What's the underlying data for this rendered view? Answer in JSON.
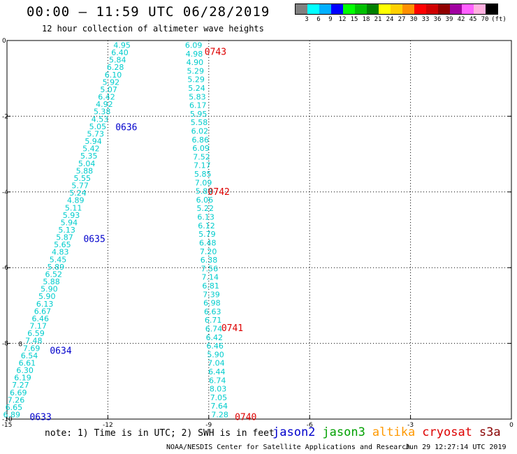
{
  "header": {
    "title": "00:00 — 11:59 UTC 06/28/2019",
    "subtitle": "12 hour collection of altimeter wave heights"
  },
  "color_scale": {
    "unit": "(ft)",
    "ticks": [
      "3",
      "6",
      "9",
      "12",
      "15",
      "18",
      "21",
      "24",
      "27",
      "30",
      "33",
      "36",
      "39",
      "42",
      "45",
      "70"
    ],
    "colors": [
      "#808080",
      "#00ffff",
      "#00b0ff",
      "#0000ff",
      "#00ff00",
      "#00c000",
      "#008000",
      "#ffff00",
      "#ffd000",
      "#ff9000",
      "#ff0000",
      "#d00000",
      "#900000",
      "#a000a0",
      "#ff60ff",
      "#ffb0e0",
      "#000000"
    ]
  },
  "footer": {
    "note": "note: 1) Time is in UTC; 2) SWH is in feet",
    "credit": "NOAA/NESDIS Center for Satellite Applications and Research",
    "timestamp": "Jun 29 12:27:14 UTC 2019"
  },
  "satellites": [
    {
      "name": "jason2",
      "color": "#0000cc"
    },
    {
      "name": "jason3",
      "color": "#00a000"
    },
    {
      "name": "altika",
      "color": "#ff9900"
    },
    {
      "name": "cryosat",
      "color": "#dd0000"
    },
    {
      "name": "s3a",
      "color": "#880000"
    }
  ],
  "chart_data": {
    "type": "scatter",
    "title": "00:00 — 11:59 UTC 06/28/2019",
    "xlim": [
      -15,
      0
    ],
    "ylim": [
      -10,
      0
    ],
    "x_ticks": [
      "-15",
      "-12",
      "-9",
      "-6",
      "-3",
      "0"
    ],
    "y_ticks": [
      "0",
      "-2",
      "-4",
      "-6",
      "-8",
      "-10"
    ],
    "grid": true,
    "series": [
      {
        "name": "jason2",
        "color": "#00cccc",
        "label_color": "#0000cc",
        "start": [
          -14.86,
          -9.88
        ],
        "end": [
          -11.58,
          -0.12
        ],
        "values": [
          "6.89",
          "6.65",
          "7.26",
          "6.69",
          "7.27",
          "6.19",
          "6.30",
          "6.61",
          "6.54",
          "7.69",
          "7.48",
          "6.59",
          "7.17",
          "6.46",
          "6.67",
          "6.13",
          "5.90",
          "5.90",
          "5.88",
          "6.52",
          "5.89",
          "5.45",
          "4.83",
          "5.65",
          "5.87",
          "5.13",
          "5.94",
          "5.93",
          "5.11",
          "4.89",
          "5.24",
          "5.77",
          "5.55",
          "5.88",
          "5.04",
          "5.35",
          "5.42",
          "5.94",
          "5.73",
          "5.05",
          "4.53",
          "5.38",
          "4.92",
          "6.42",
          "5.07",
          "5.92",
          "6.10",
          "6.28",
          "5.84",
          "6.40",
          "4.95"
        ],
        "time_labels": [
          {
            "text": "0633",
            "x": -14.0,
            "y": -9.95
          },
          {
            "text": "0634",
            "x": -13.4,
            "y": -8.2
          },
          {
            "text": "0635",
            "x": -12.4,
            "y": -5.25
          },
          {
            "text": "0636",
            "x": -11.45,
            "y": -2.3
          }
        ]
      },
      {
        "name": "s3a",
        "color": "#00cccc",
        "label_color": "#dd0000",
        "start": [
          -8.67,
          -9.88
        ],
        "end": [
          -9.45,
          -0.12
        ],
        "values": [
          "7.28",
          "7.64",
          "7.05",
          "8.03",
          "6.74",
          "6.44",
          "7.04",
          "5.90",
          "6.46",
          "6.42",
          "6.74",
          "6.71",
          "6.63",
          "6.98",
          "7.39",
          "6.81",
          "7.14",
          "7.56",
          "6.38",
          "7.20",
          "6.48",
          "5.79",
          "6.12",
          "6.13",
          "5.22",
          "6.06",
          "5.89",
          "7.09",
          "5.85",
          "7.17",
          "7.52",
          "6.09",
          "6.86",
          "6.02",
          "5.58",
          "5.95",
          "6.17",
          "5.83",
          "5.24",
          "5.29",
          "5.29",
          "4.90",
          "4.98",
          "6.09"
        ],
        "time_labels": [
          {
            "text": "0740",
            "x": -7.9,
            "y": -9.95
          },
          {
            "text": "0741",
            "x": -8.3,
            "y": -7.6
          },
          {
            "text": "0742",
            "x": -8.7,
            "y": -4.0
          },
          {
            "text": "0743",
            "x": -8.8,
            "y": -0.3
          }
        ]
      }
    ],
    "extra_points": [
      {
        "text": "8",
        "x": -14.6,
        "y": -8.0
      }
    ]
  }
}
